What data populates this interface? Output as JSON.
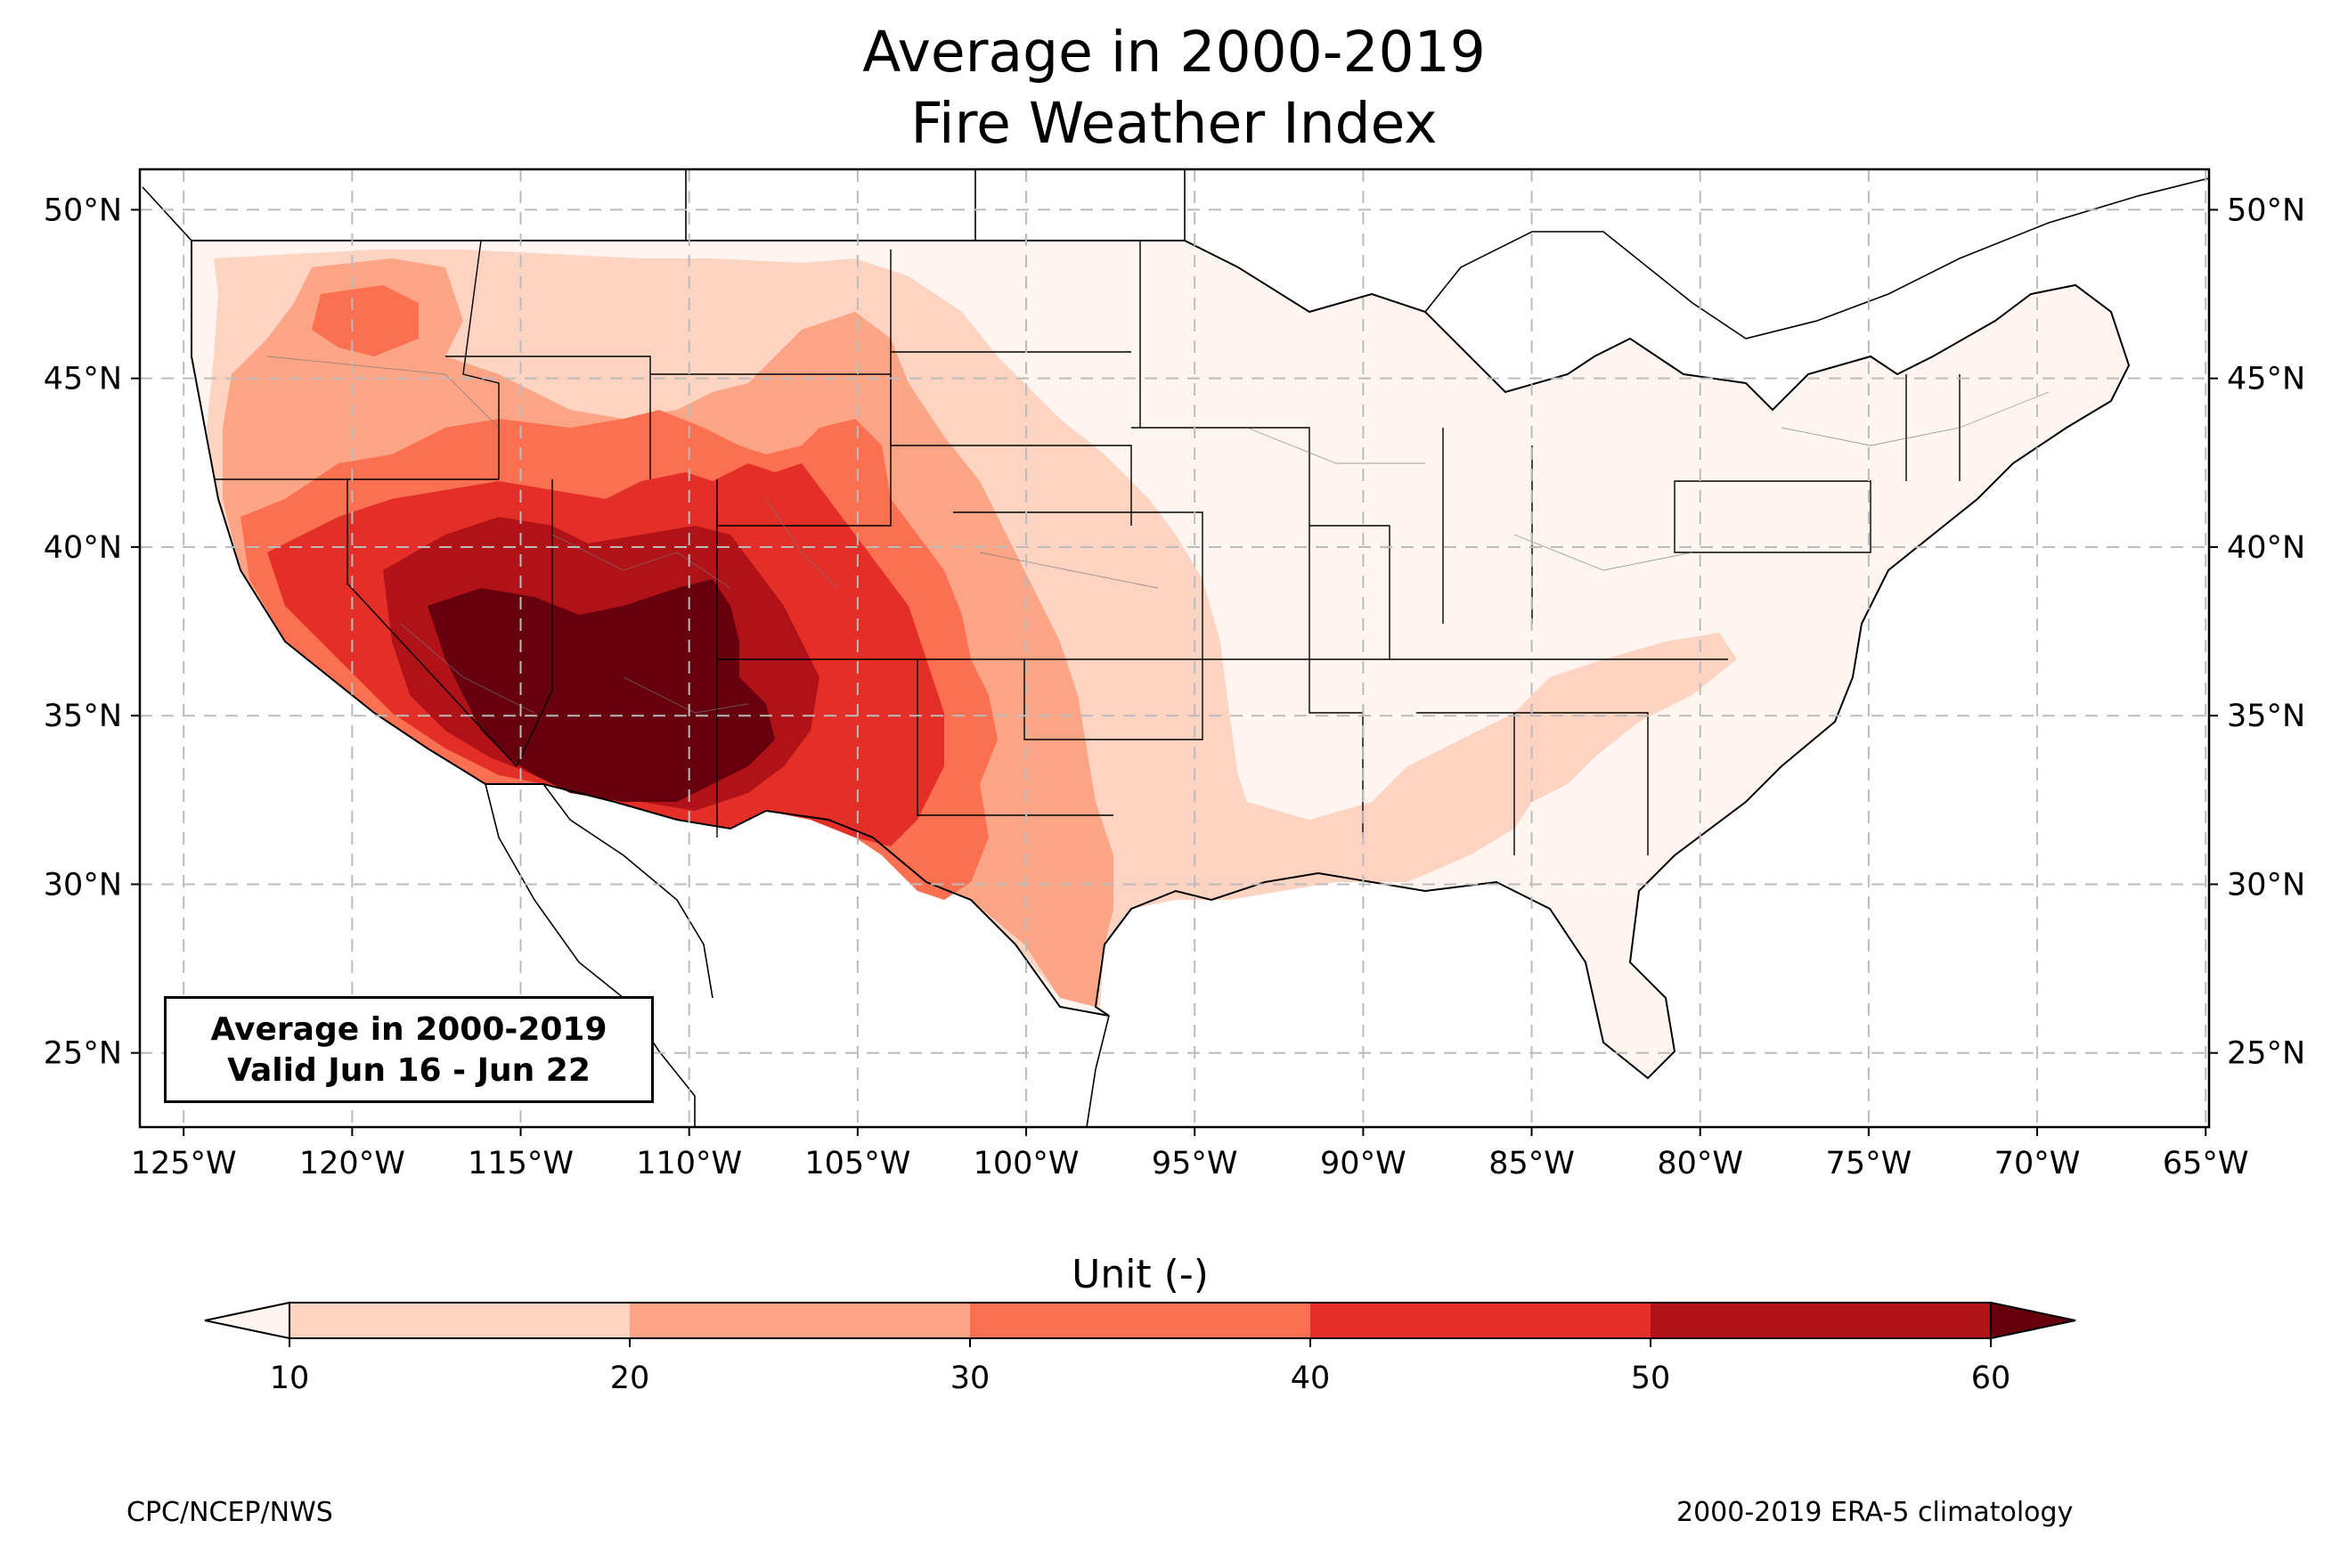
{
  "title": {
    "line1": "Average in 2000-2019",
    "line2": "Fire Weather Index"
  },
  "map": {
    "lon_range": [
      -126.3,
      -64.9
    ],
    "lat_range": [
      22.8,
      51.2
    ],
    "lon_ticks": [
      "125°W",
      "120°W",
      "115°W",
      "110°W",
      "105°W",
      "100°W",
      "95°W",
      "90°W",
      "85°W",
      "80°W",
      "75°W",
      "70°W",
      "65°W"
    ],
    "lat_ticks": [
      "50°N",
      "45°N",
      "40°N",
      "35°N",
      "30°N",
      "25°N"
    ],
    "gridlines": true,
    "legend_box": {
      "line1": "Average in 2000-2019",
      "line2": "Valid Jun 16 - Jun 22"
    },
    "colors": {
      "lt10": "#fff5f0",
      "b10_20": "#fdd4c2",
      "b20_30": "#fca486",
      "b30_40": "#fb7050",
      "b40_50": "#e32f27",
      "b50_60": "#b11218",
      "gt60": "#67000d"
    }
  },
  "colorbar": {
    "title": "Unit (-)",
    "levels": [
      "10",
      "20",
      "30",
      "40",
      "50",
      "60"
    ],
    "extend": "both"
  },
  "credits": {
    "left": "CPC/NCEP/NWS",
    "right": "2000-2019 ERA-5 climatology"
  }
}
